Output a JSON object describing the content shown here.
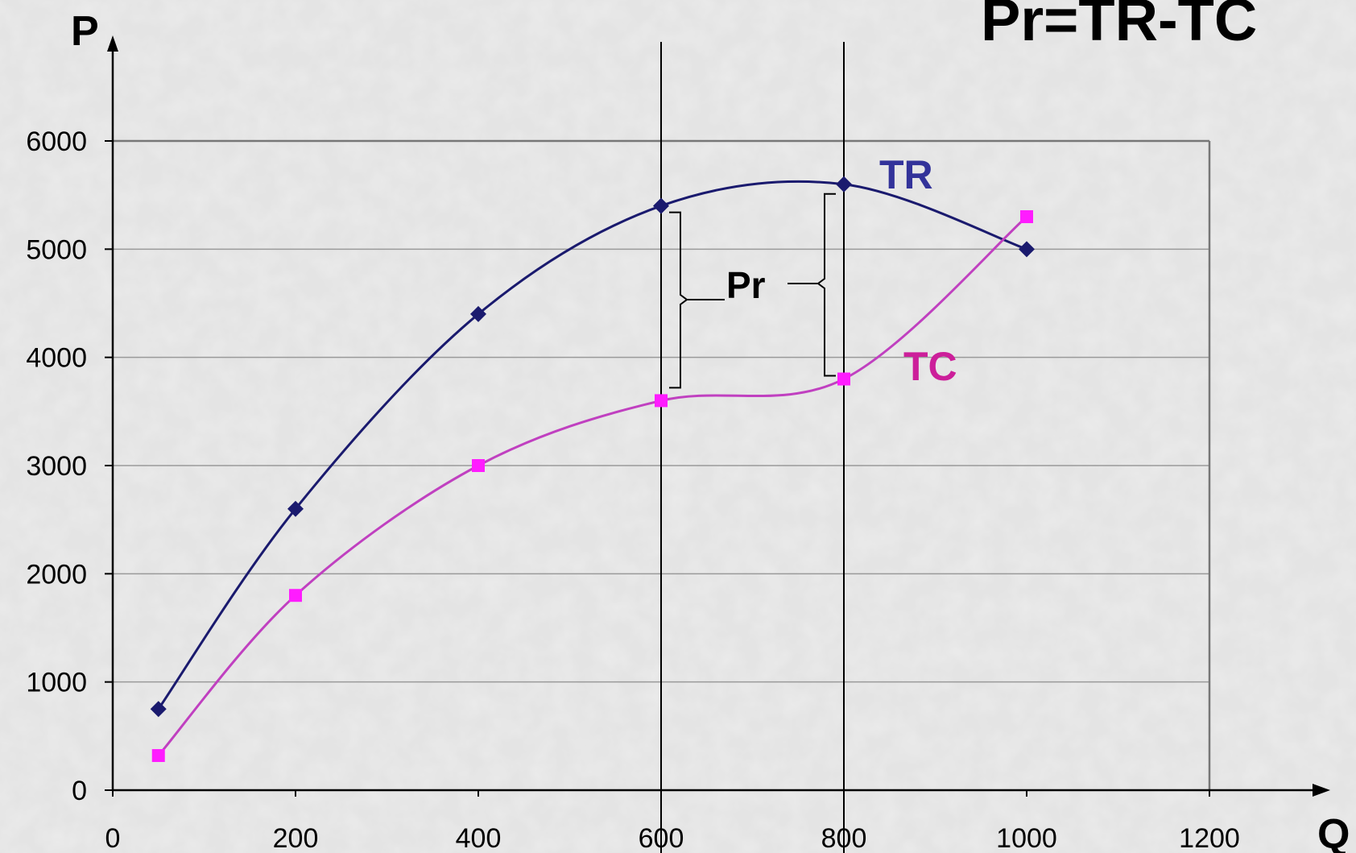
{
  "chart_data": {
    "type": "line",
    "formula": "Pr=TR-TC",
    "xlabel": "Q",
    "ylabel": "P",
    "xlim": [
      0,
      1200
    ],
    "ylim": [
      0,
      6000
    ],
    "x_ticks": [
      0,
      200,
      400,
      600,
      800,
      1000,
      1200
    ],
    "y_ticks": [
      0,
      1000,
      2000,
      3000,
      4000,
      5000,
      6000
    ],
    "grid": true,
    "x": [
      50,
      200,
      400,
      600,
      800,
      1000
    ],
    "series": [
      {
        "name": "TR",
        "color": "#1a1a6e",
        "label_color": "#33339a",
        "marker": "diamond",
        "values": [
          750,
          2600,
          4400,
          5400,
          5600,
          5000
        ]
      },
      {
        "name": "TC",
        "color": "#c040c0",
        "label_color": "#cc1f9a",
        "marker": "square",
        "marker_color": "#ff1cff",
        "values": [
          320,
          1800,
          3000,
          3600,
          3800,
          5300
        ]
      }
    ],
    "vertical_lines": [
      600,
      800
    ],
    "annotation": {
      "text": "Pr",
      "brackets_at": [
        600,
        800
      ]
    }
  }
}
